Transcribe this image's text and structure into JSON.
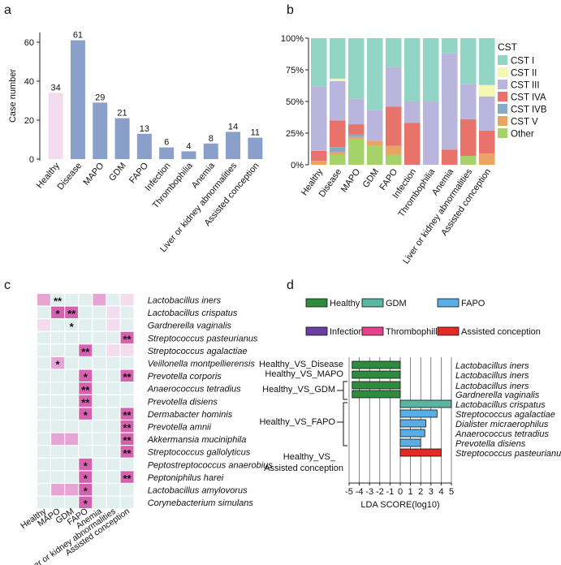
{
  "panels": {
    "a": "a",
    "b": "b",
    "c": "c",
    "d": "d"
  },
  "chart_data": [
    {
      "type": "bar",
      "panel": "a",
      "ylabel": "Case number",
      "ylim": [
        0,
        65
      ],
      "yticks": [
        0,
        20,
        40,
        60
      ],
      "categories": [
        "Healthy",
        "Disease",
        "MAPO",
        "GDM",
        "FAPO",
        "Infection",
        "Thrombophilia",
        "Anemia",
        "Liver or kidney abnormalities",
        "Assisted conception"
      ],
      "values": [
        34,
        61,
        29,
        21,
        13,
        6,
        4,
        8,
        14,
        11
      ],
      "bar_colors": [
        "#f3dced",
        "#8b9fcb",
        "#8b9fcb",
        "#8b9fcb",
        "#8b9fcb",
        "#8b9fcb",
        "#8b9fcb",
        "#8b9fcb",
        "#8b9fcb",
        "#8b9fcb"
      ]
    },
    {
      "type": "bar",
      "stacked": true,
      "panel": "b",
      "legend_title": "CST",
      "legend_position": "right",
      "yticks": [
        "0%",
        "25%",
        "50%",
        "75%",
        "100%"
      ],
      "ylim": [
        0,
        1
      ],
      "categories": [
        "Healthy",
        "Disease",
        "MAPO",
        "GDM",
        "FAPO",
        "Infection",
        "Thrombophilia",
        "Anemia",
        "Liver or kidney abnormalities",
        "Assisted conception"
      ],
      "series": [
        {
          "name": "Other",
          "color": "#a5d36a",
          "values": [
            0.0,
            0.08,
            0.2,
            0.15,
            0.08,
            0.0,
            0.0,
            0.0,
            0.07,
            0.0
          ]
        },
        {
          "name": "CST V",
          "color": "#e9a463",
          "values": [
            0.03,
            0.02,
            0.02,
            0.04,
            0.07,
            0.0,
            0.0,
            0.0,
            0.0,
            0.09
          ]
        },
        {
          "name": "CST IVB",
          "color": "#87a9c6",
          "values": [
            0.0,
            0.04,
            0.02,
            0.0,
            0.0,
            0.0,
            0.0,
            0.0,
            0.0,
            0.0
          ]
        },
        {
          "name": "CST IVA",
          "color": "#e8736b",
          "values": [
            0.08,
            0.21,
            0.08,
            0.0,
            0.31,
            0.33,
            0.0,
            0.12,
            0.29,
            0.18
          ]
        },
        {
          "name": "CST III",
          "color": "#bab5dc",
          "values": [
            0.51,
            0.31,
            0.2,
            0.24,
            0.31,
            0.17,
            0.5,
            0.76,
            0.28,
            0.27
          ]
        },
        {
          "name": "CST II",
          "color": "#f4f7b2",
          "values": [
            0.0,
            0.02,
            0.0,
            0.0,
            0.0,
            0.0,
            0.0,
            0.0,
            0.0,
            0.09
          ]
        },
        {
          "name": "CST I",
          "color": "#93d5c4",
          "values": [
            0.38,
            0.32,
            0.48,
            0.57,
            0.23,
            0.5,
            0.5,
            0.12,
            0.36,
            0.37
          ]
        }
      ],
      "legend_order": [
        "CST I",
        "CST II",
        "CST III",
        "CST IVA",
        "CST IVB",
        "CST V",
        "Other"
      ]
    },
    {
      "type": "heatmap",
      "panel": "c",
      "columns": [
        "Healthy",
        "MAPO",
        "GDM",
        "FAPO",
        "Anemia",
        "Liver or kidney abnormalities",
        "Assisted conception"
      ],
      "rows": [
        "Lactobacillus iners",
        "Lactobacillus crispatus",
        "Gardnerella vaginalis",
        "Streptococcus pasteurianus",
        "Streptococcus agalactiae",
        "Veillonella montpellierensis",
        "Prevotella corporis",
        "Anaerococcus tetradius",
        "Prevotella disiens",
        "Dermabacter hominis",
        "Prevotella amnii",
        "Akkermansia muciniphila",
        "Streptococcus gallolyticus",
        "Peptostreptococcus anaerobius",
        "Peptoniphilus harei",
        "Lactobacillus amylovorus",
        "Corynebacterium simulans"
      ],
      "levels": [
        [
          2,
          0,
          0,
          0,
          2,
          0,
          1
        ],
        [
          0,
          3,
          3,
          0,
          0,
          1,
          0
        ],
        [
          1,
          0,
          0,
          0,
          0,
          1,
          0
        ],
        [
          0,
          0,
          0,
          0,
          0,
          0,
          3
        ],
        [
          0,
          0,
          0,
          3,
          0,
          1,
          1
        ],
        [
          0,
          2,
          0,
          0,
          0,
          0,
          0
        ],
        [
          0,
          0,
          0,
          3,
          0,
          0,
          3
        ],
        [
          0,
          0,
          0,
          3,
          0,
          0,
          0
        ],
        [
          0,
          0,
          0,
          3,
          0,
          0,
          0
        ],
        [
          0,
          0,
          0,
          3,
          0,
          0,
          3
        ],
        [
          0,
          0,
          0,
          0,
          0,
          0,
          3
        ],
        [
          0,
          2,
          2,
          0,
          0,
          0,
          3
        ],
        [
          0,
          0,
          0,
          0,
          0,
          0,
          3
        ],
        [
          0,
          0,
          0,
          3,
          0,
          0,
          0
        ],
        [
          0,
          0,
          0,
          3,
          0,
          0,
          3
        ],
        [
          0,
          2,
          2,
          3,
          0,
          0,
          0
        ],
        [
          0,
          0,
          0,
          3,
          0,
          0,
          0
        ]
      ],
      "stars": [
        [
          "",
          "**",
          "",
          "",
          "",
          "",
          ""
        ],
        [
          "",
          "*",
          "**",
          "",
          "",
          "",
          ""
        ],
        [
          "",
          "",
          "*",
          "",
          "",
          "",
          ""
        ],
        [
          "",
          "",
          "",
          "",
          "",
          "",
          "**"
        ],
        [
          "",
          "",
          "",
          "**",
          "",
          "",
          ""
        ],
        [
          "",
          "*",
          "",
          "",
          "",
          "",
          ""
        ],
        [
          "",
          "",
          "",
          "*",
          "",
          "",
          "**"
        ],
        [
          "",
          "",
          "",
          "**",
          "",
          "",
          ""
        ],
        [
          "",
          "",
          "",
          "**",
          "",
          "",
          ""
        ],
        [
          "",
          "",
          "",
          "*",
          "",
          "",
          "**"
        ],
        [
          "",
          "",
          "",
          "",
          "",
          "",
          "**"
        ],
        [
          "",
          "",
          "",
          "",
          "",
          "",
          "**"
        ],
        [
          "",
          "",
          "",
          "",
          "",
          "",
          "**"
        ],
        [
          "",
          "",
          "",
          "*",
          "",
          "",
          ""
        ],
        [
          "",
          "",
          "",
          "*",
          "",
          "",
          "**"
        ],
        [
          "",
          "",
          "",
          "*",
          "",
          "",
          ""
        ],
        [
          "",
          "",
          "",
          "*",
          "",
          "",
          ""
        ]
      ],
      "level_colors": [
        "#e2efef",
        "#f3dced",
        "#e6a5d5",
        "#d462ae"
      ]
    },
    {
      "type": "bar",
      "orientation": "horizontal",
      "panel": "d",
      "xlabel": "LDA SCORE(log10)",
      "xlim": [
        -5,
        5
      ],
      "xticks": [
        -5,
        -4,
        -3,
        -2,
        -1,
        0,
        1,
        2,
        3,
        4,
        5
      ],
      "legend": [
        {
          "name": "Healthy",
          "color": "#2e8a3d"
        },
        {
          "name": "GDM",
          "color": "#5ab5a3"
        },
        {
          "name": "FAPO",
          "color": "#5aaee6"
        },
        {
          "name": "Infection",
          "color": "#6b3fa0"
        },
        {
          "name": "Thrombophilla",
          "color": "#e8408a"
        },
        {
          "name": "Assisted conception",
          "color": "#e22b25"
        }
      ],
      "bars": [
        {
          "taxon": "Lactobacillus iners",
          "value": -4.7,
          "group": "Healthy"
        },
        {
          "taxon": "Lactobacillus iners",
          "value": -4.7,
          "group": "Healthy"
        },
        {
          "taxon": "Lactobacillus iners",
          "value": -4.7,
          "group": "Healthy"
        },
        {
          "taxon": "Gardnerella vaginalis",
          "value": -4.7,
          "group": "Healthy"
        },
        {
          "taxon": "Lactobacillus crispatus",
          "value": 5.0,
          "group": "GDM"
        },
        {
          "taxon": "Streptococcus agalactiae",
          "value": 3.6,
          "group": "FAPO"
        },
        {
          "taxon": "Dialister micraerophilus",
          "value": 2.5,
          "group": "FAPO"
        },
        {
          "taxon": "Anaerococcus tetradius",
          "value": 2.4,
          "group": "FAPO"
        },
        {
          "taxon": "Prevotella disiens",
          "value": 2.0,
          "group": "FAPO"
        },
        {
          "taxon": "Streptococcus pasteurianus",
          "value": 4.0,
          "group": "Assisted conception"
        }
      ],
      "comparisons": [
        {
          "label": "Healthy_VS_Disease"
        },
        {
          "label": "Healthy_VS_MAPO"
        },
        {
          "label": "Healthy_VS_GDM"
        },
        {
          "label": "Healthy_VS_FAPO"
        },
        {
          "label": "Healthy_VS_",
          "label2": "Assisted conception"
        }
      ]
    }
  ]
}
